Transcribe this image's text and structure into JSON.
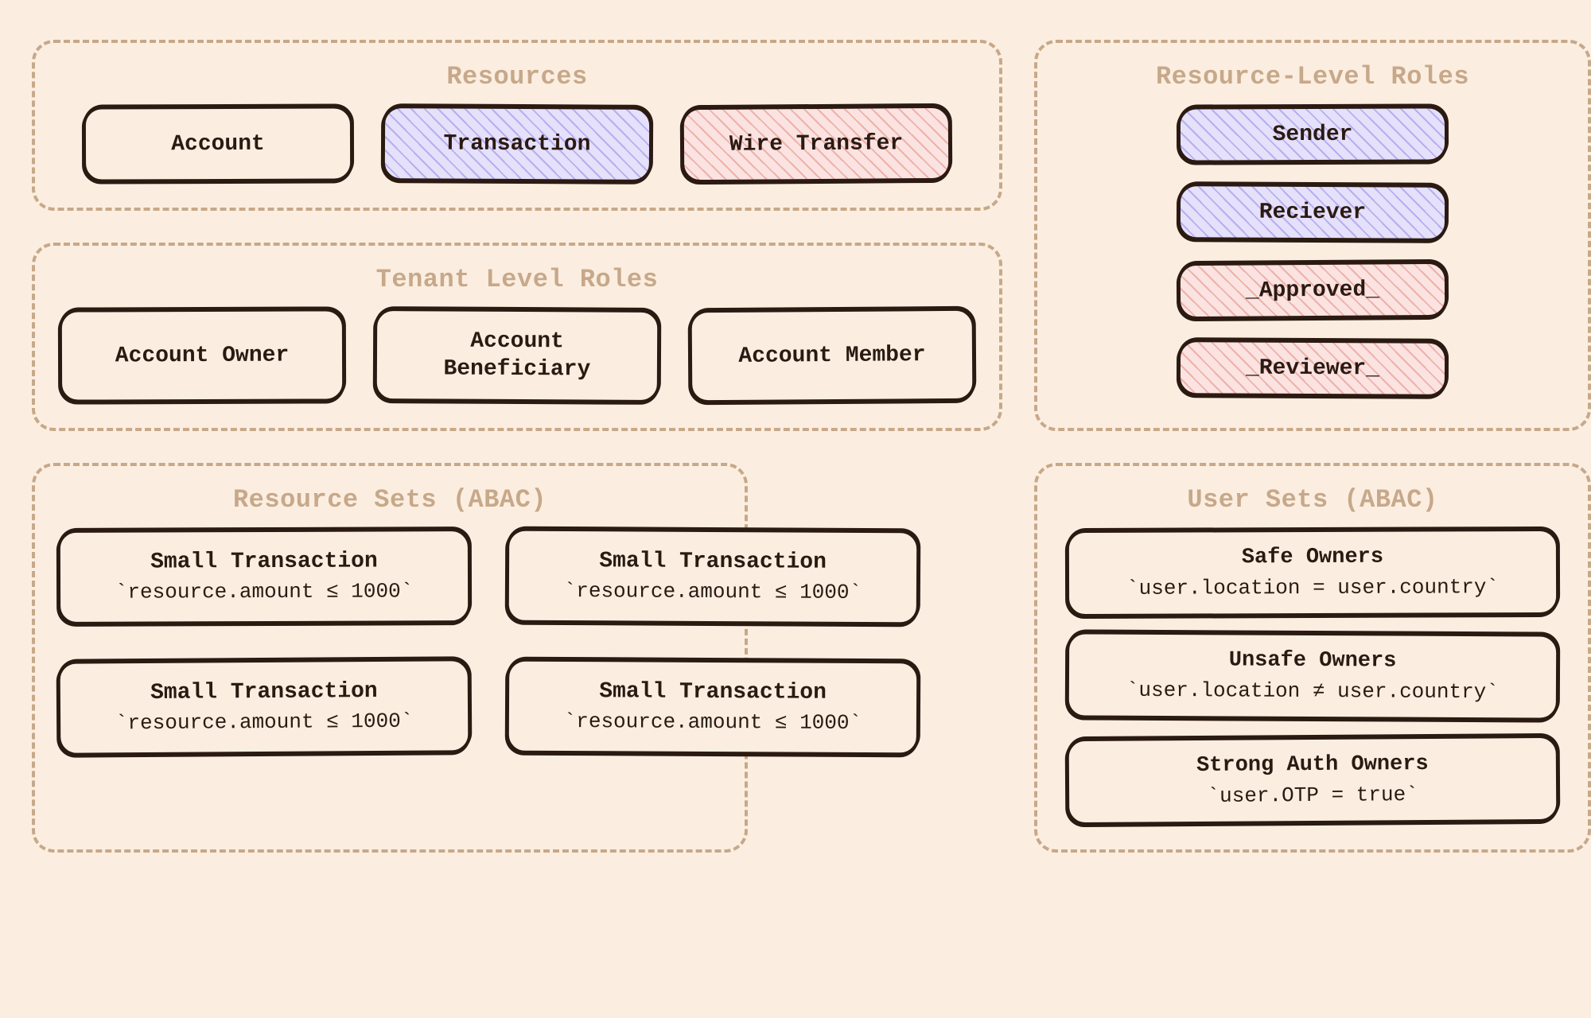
{
  "type": "infographic",
  "background_color": "#fbeee0",
  "border_color": "#c7a88a",
  "box_border_color": "#2b1a12",
  "text_color": "#2b1a12",
  "hatch_purple": {
    "fill": "#e5e1fb",
    "stripe": "#b8aef0"
  },
  "hatch_pink": {
    "fill": "#fbe3e1",
    "stripe": "#eeb1ab"
  },
  "font_family": "monospace",
  "panel_title_fontsize": 32,
  "box_fontsize": 28,
  "resources": {
    "title": "Resources",
    "items": [
      {
        "label": "Account",
        "fill": "plain"
      },
      {
        "label": "Transaction",
        "fill": "purple"
      },
      {
        "label": "Wire Transfer",
        "fill": "pink"
      }
    ]
  },
  "resource_roles": {
    "title": "Resource-Level Roles",
    "items": [
      {
        "label": "Sender",
        "fill": "purple"
      },
      {
        "label": "Reciever",
        "fill": "purple"
      },
      {
        "label": "_Approved_",
        "fill": "pink"
      },
      {
        "label": "_Reviewer_",
        "fill": "pink"
      }
    ]
  },
  "tenant_roles": {
    "title": "Tenant Level Roles",
    "items": [
      {
        "label": "Account Owner"
      },
      {
        "label": "Account Beneficiary"
      },
      {
        "label": "Account Member"
      }
    ]
  },
  "resource_sets": {
    "title": "Resource Sets (ABAC)",
    "items": [
      {
        "label": "Small Transaction",
        "expr": "`resource.amount ≤ 1000`"
      },
      {
        "label": "Small Transaction",
        "expr": "`resource.amount ≤ 1000`"
      },
      {
        "label": "Small Transaction",
        "expr": "`resource.amount ≤ 1000`"
      },
      {
        "label": "Small Transaction",
        "expr": "`resource.amount ≤ 1000`"
      }
    ]
  },
  "user_sets": {
    "title": "User Sets (ABAC)",
    "items": [
      {
        "label": "Safe Owners",
        "expr": "`user.location = user.country`"
      },
      {
        "label": "Unsafe Owners",
        "expr": "`user.location ≠ user.country`"
      },
      {
        "label": "Strong Auth Owners",
        "expr": "`user.OTP = true`"
      }
    ]
  }
}
